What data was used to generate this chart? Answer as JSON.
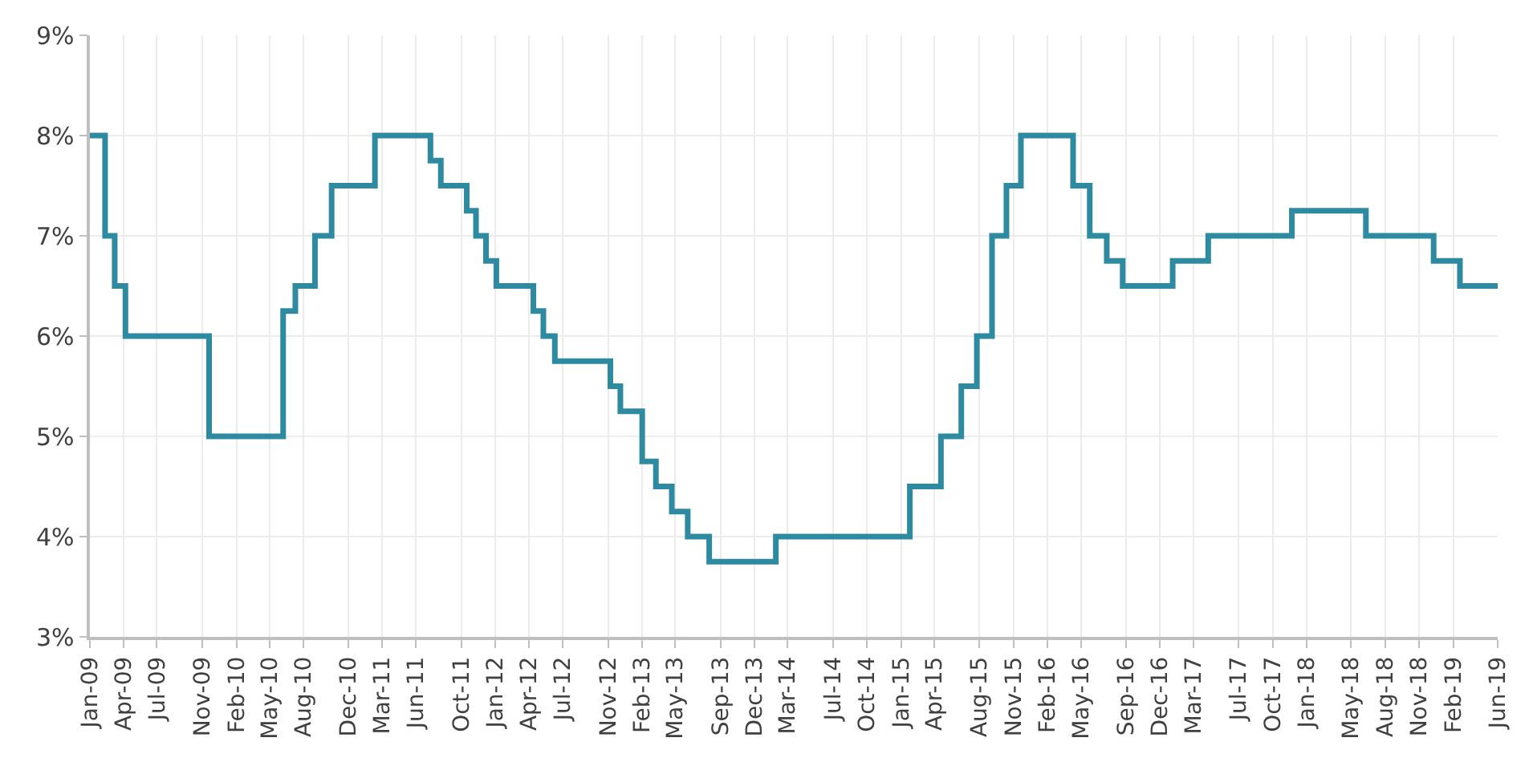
{
  "chart_data": {
    "type": "step",
    "x": [
      "2009-01-01",
      "2009-02-11",
      "2009-03-09",
      "2009-04-07",
      "2009-11-19",
      "2010-06-07",
      "2010-07-10",
      "2010-09-01",
      "2010-10-16",
      "2011-02-10",
      "2011-07-10",
      "2011-08-07",
      "2011-10-16",
      "2011-11-10",
      "2011-12-07",
      "2012-01-04",
      "2012-04-13",
      "2012-05-10",
      "2012-06-10",
      "2012-11-07",
      "2012-12-04",
      "2013-02-01",
      "2013-03-10",
      "2013-04-22",
      "2013-06-04",
      "2013-08-01",
      "2014-01-28",
      "2015-01-25",
      "2015-04-19",
      "2015-06-13",
      "2015-07-25",
      "2015-09-04",
      "2015-10-13",
      "2015-11-21",
      "2016-04-10",
      "2016-05-25",
      "2016-07-10",
      "2016-08-22",
      "2017-01-04",
      "2017-04-10",
      "2017-11-22",
      "2018-06-10",
      "2018-12-10",
      "2019-02-19",
      "2019-06-01"
    ],
    "series": [
      {
        "color": "#2e8aa0",
        "values": [
          8,
          7,
          6.5,
          6,
          5,
          6.25,
          6.5,
          7,
          7.5,
          8,
          7.75,
          7.5,
          7.25,
          7,
          6.75,
          6.5,
          6.25,
          6,
          5.75,
          5.5,
          5.25,
          4.75,
          4.5,
          4.25,
          4,
          3.75,
          4,
          4.5,
          5,
          5.5,
          6,
          7,
          7.5,
          8,
          7.5,
          7,
          6.75,
          6.5,
          6.75,
          7,
          7.25,
          7,
          6.75,
          6.5,
          6.5
        ]
      }
    ],
    "xlim": [
      "2009-01-01",
      "2019-06-01"
    ],
    "xticks": [
      {
        "value": "2009-01-01",
        "label": "Jan-09"
      },
      {
        "value": "2009-04-01",
        "label": "Apr-09"
      },
      {
        "value": "2009-07-01",
        "label": "Jul-09"
      },
      {
        "value": "2009-11-01",
        "label": "Nov-09"
      },
      {
        "value": "2010-02-01",
        "label": "Feb-10"
      },
      {
        "value": "2010-05-01",
        "label": "May-10"
      },
      {
        "value": "2010-08-01",
        "label": "Aug-10"
      },
      {
        "value": "2010-12-01",
        "label": "Dec-10"
      },
      {
        "value": "2011-03-01",
        "label": "Mar-11"
      },
      {
        "value": "2011-06-01",
        "label": "Jun-11"
      },
      {
        "value": "2011-10-01",
        "label": "Oct-11"
      },
      {
        "value": "2012-01-01",
        "label": "Jan-12"
      },
      {
        "value": "2012-04-01",
        "label": "Apr-12"
      },
      {
        "value": "2012-07-01",
        "label": "Jul-12"
      },
      {
        "value": "2012-11-01",
        "label": "Nov-12"
      },
      {
        "value": "2013-02-01",
        "label": "Feb-13"
      },
      {
        "value": "2013-05-01",
        "label": "May-13"
      },
      {
        "value": "2013-09-01",
        "label": "Sep-13"
      },
      {
        "value": "2013-12-01",
        "label": "Dec-13"
      },
      {
        "value": "2014-03-01",
        "label": "Mar-14"
      },
      {
        "value": "2014-07-01",
        "label": "Jul-14"
      },
      {
        "value": "2014-10-01",
        "label": "Oct-14"
      },
      {
        "value": "2015-01-01",
        "label": "Jan-15"
      },
      {
        "value": "2015-04-01",
        "label": "Apr-15"
      },
      {
        "value": "2015-08-01",
        "label": "Aug-15"
      },
      {
        "value": "2015-11-01",
        "label": "Nov-15"
      },
      {
        "value": "2016-02-01",
        "label": "Feb-16"
      },
      {
        "value": "2016-05-01",
        "label": "May-16"
      },
      {
        "value": "2016-09-01",
        "label": "Sep-16"
      },
      {
        "value": "2016-12-01",
        "label": "Dec-16"
      },
      {
        "value": "2017-03-01",
        "label": "Mar-17"
      },
      {
        "value": "2017-07-01",
        "label": "Jul-17"
      },
      {
        "value": "2017-10-01",
        "label": "Oct-17"
      },
      {
        "value": "2018-01-01",
        "label": "Jan-18"
      },
      {
        "value": "2018-05-01",
        "label": "May-18"
      },
      {
        "value": "2018-08-01",
        "label": "Aug-18"
      },
      {
        "value": "2018-11-01",
        "label": "Nov-18"
      },
      {
        "value": "2019-02-01",
        "label": "Feb-19"
      },
      {
        "value": "2019-06-01",
        "label": "Jun-19"
      }
    ],
    "ylim": [
      3,
      9
    ],
    "yticks": [
      {
        "value": 3,
        "label": "3%"
      },
      {
        "value": 4,
        "label": "4%"
      },
      {
        "value": 5,
        "label": "5%"
      },
      {
        "value": 6,
        "label": "6%"
      },
      {
        "value": 7,
        "label": "7%"
      },
      {
        "value": 8,
        "label": "8%"
      },
      {
        "value": 9,
        "label": "9%"
      }
    ],
    "grid": true,
    "marker": "none",
    "line_style": "solid"
  }
}
